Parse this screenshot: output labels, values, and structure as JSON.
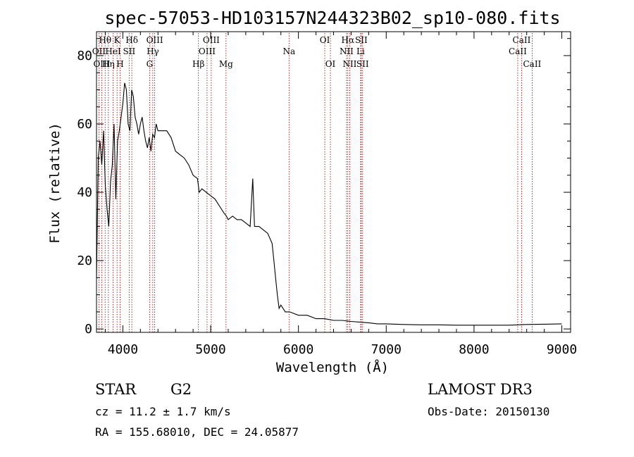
{
  "chart_data": {
    "type": "line",
    "title": "spec-57053-HD103157N244323B02_sp10-080.fits",
    "xlabel": "Wavelength (Å)",
    "ylabel": "Flux (relative)",
    "xlim": [
      3700,
      9100
    ],
    "ylim": [
      -1,
      87
    ],
    "xticks": [
      4000,
      5000,
      6000,
      7000,
      8000,
      9000
    ],
    "yticks": [
      0,
      20,
      40,
      60,
      80
    ],
    "spectrum": {
      "x": [
        3700,
        3720,
        3740,
        3760,
        3780,
        3800,
        3820,
        3840,
        3860,
        3880,
        3900,
        3920,
        3940,
        3960,
        3980,
        4000,
        4020,
        4040,
        4060,
        4080,
        4100,
        4120,
        4140,
        4160,
        4180,
        4200,
        4220,
        4240,
        4260,
        4280,
        4300,
        4320,
        4340,
        4360,
        4380,
        4400,
        4450,
        4500,
        4550,
        4600,
        4650,
        4700,
        4750,
        4800,
        4850,
        4870,
        4900,
        4950,
        5000,
        5050,
        5100,
        5150,
        5180,
        5200,
        5250,
        5300,
        5350,
        5400,
        5450,
        5480,
        5500,
        5550,
        5600,
        5650,
        5700,
        5720,
        5740,
        5760,
        5780,
        5800,
        5850,
        5900,
        6000,
        6100,
        6200,
        6300,
        6400,
        6500,
        6600,
        6700,
        6800,
        6900,
        7000,
        7200,
        7400,
        7600,
        7800,
        8000,
        8200,
        8400,
        8600,
        8800,
        9000
      ],
      "y": [
        15,
        50,
        55,
        48,
        58,
        42,
        35,
        30,
        43,
        48,
        60,
        38,
        55,
        58,
        62,
        66,
        72,
        70,
        60,
        58,
        70,
        68,
        62,
        60,
        57,
        60,
        62,
        58,
        55,
        53,
        56,
        52,
        57,
        56,
        60,
        58,
        58,
        58,
        56,
        52,
        51,
        50,
        48,
        45,
        44,
        40,
        41,
        40,
        39,
        38,
        36,
        34,
        33,
        32,
        33,
        32,
        32,
        31,
        30,
        44,
        30,
        30,
        29,
        28,
        25,
        20,
        15,
        10,
        6,
        7,
        5,
        5,
        4,
        4,
        3,
        3,
        2.5,
        2.5,
        2.2,
        2,
        1.8,
        1.5,
        1.5,
        1.3,
        1.2,
        1.2,
        1.1,
        1.1,
        1.1,
        1.1,
        1.3,
        1.4,
        1.5
      ]
    },
    "lines": [
      {
        "label": "Hθ",
        "wave": 3798,
        "row": 0
      },
      {
        "label": "OII",
        "wave": 3727,
        "row": 1
      },
      {
        "label": "OIII",
        "wave": 3760,
        "row": 2
      },
      {
        "label": "K",
        "wave": 3934,
        "row": 0
      },
      {
        "label": "HeI",
        "wave": 3889,
        "row": 1
      },
      {
        "label": "Hη",
        "wave": 3835,
        "row": 2
      },
      {
        "label": "Hδ",
        "wave": 4102,
        "row": 0
      },
      {
        "label": "SII",
        "wave": 4072,
        "row": 1
      },
      {
        "label": "H",
        "wave": 3969,
        "row": 2
      },
      {
        "label": "OIII",
        "wave": 4363,
        "row": 0
      },
      {
        "label": "Hγ",
        "wave": 4341,
        "row": 1
      },
      {
        "label": "G",
        "wave": 4305,
        "row": 2
      },
      {
        "label": "OIII",
        "wave": 5007,
        "row": 0
      },
      {
        "label": "OIII",
        "wave": 4959,
        "row": 1
      },
      {
        "label": "Hβ",
        "wave": 4861,
        "row": 2
      },
      {
        "label": "Mg",
        "wave": 5175,
        "row": 2
      },
      {
        "label": "Na",
        "wave": 5893,
        "row": 1
      },
      {
        "label": "OI",
        "wave": 6300,
        "row": 0
      },
      {
        "label": "OI",
        "wave": 6364,
        "row": 2
      },
      {
        "label": "Hα",
        "wave": 6563,
        "row": 0
      },
      {
        "label": "SII",
        "wave": 6716,
        "row": 0
      },
      {
        "label": "NII",
        "wave": 6548,
        "row": 1
      },
      {
        "label": "Li",
        "wave": 6708,
        "row": 1
      },
      {
        "label": "NII",
        "wave": 6584,
        "row": 2
      },
      {
        "label": "SII",
        "wave": 6731,
        "row": 2
      },
      {
        "label": "CaII",
        "wave": 8542,
        "row": 0
      },
      {
        "label": "CaII",
        "wave": 8498,
        "row": 1
      },
      {
        "label": "CaII",
        "wave": 8662,
        "row": 2
      }
    ],
    "grid": false,
    "line_color": "#000000",
    "marker_color": "#8b0000"
  },
  "info": {
    "object_class": "STAR",
    "subclass": "G2",
    "survey": "LAMOST DR3",
    "redshift_text": "cz = 11.2 ± 1.7 km/s",
    "obs_date": "Obs-Date: 20150130",
    "coords": "RA = 155.68010, DEC =  24.05877"
  }
}
